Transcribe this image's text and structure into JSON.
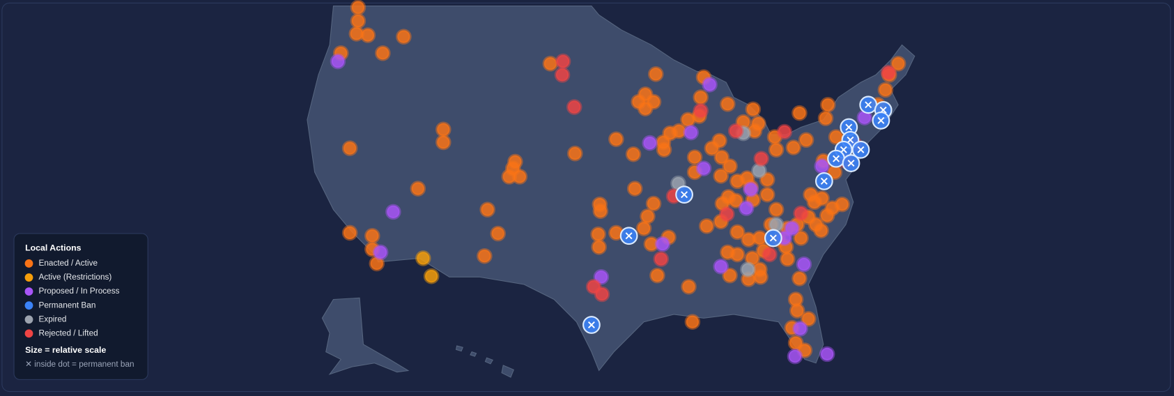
{
  "legend": {
    "title": "Local Actions",
    "items": [
      {
        "label": "Enacted / Active",
        "color": "#f97316"
      },
      {
        "label": "Active (Restrictions)",
        "color": "#f59e0b"
      },
      {
        "label": "Proposed / In Process",
        "color": "#a855f7"
      },
      {
        "label": "Permanent Ban",
        "color": "#3b82f6"
      },
      {
        "label": "Expired",
        "color": "#9ca3af"
      },
      {
        "label": "Rejected / Lifted",
        "color": "#ef4444"
      }
    ],
    "size_note": "Size = relative scale",
    "ban_note": "✕ inside dot = permanent ban"
  }
}
